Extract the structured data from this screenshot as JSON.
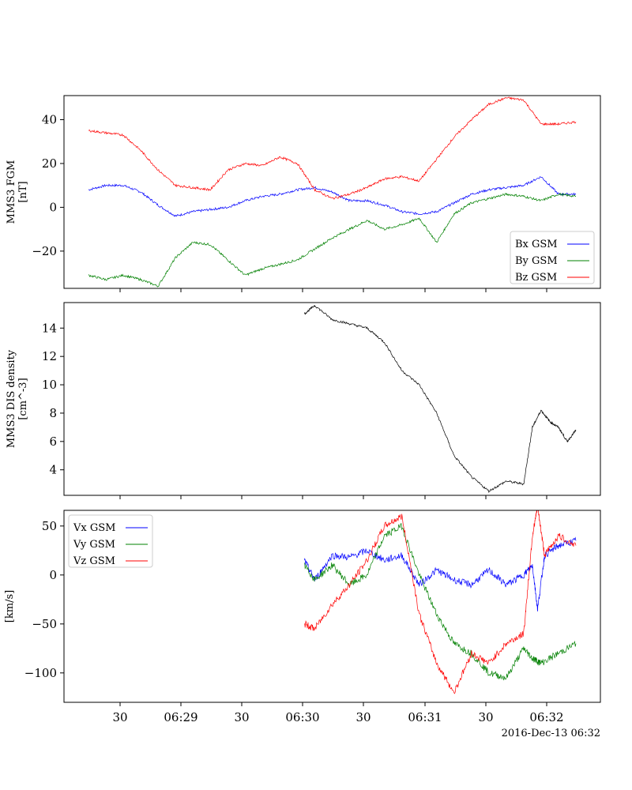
{
  "chart_data": [
    {
      "type": "line",
      "ylabel_lines": [
        "MMS3 FGM",
        "[nT]"
      ],
      "ylim": [
        -37,
        51
      ],
      "yticks": [
        40,
        20,
        0,
        -20
      ],
      "ytick_labels": [
        "40",
        "20",
        "0",
        "−20"
      ],
      "legend": "bottom-right",
      "series": [
        {
          "name": "Bx GSM",
          "color": "#0000ff",
          "x": [
            0,
            10,
            20,
            30,
            40,
            50,
            60,
            70,
            80,
            90,
            100,
            110,
            120,
            130,
            140,
            150,
            160,
            170,
            180,
            190,
            200,
            210,
            220,
            230,
            240,
            250,
            260,
            270,
            280
          ],
          "y": [
            8,
            10,
            10,
            7,
            1,
            -4,
            -2,
            -1,
            0,
            3,
            5,
            6,
            8,
            9,
            7,
            3,
            3,
            1,
            -2,
            -3,
            -2,
            2,
            6,
            8,
            9,
            10,
            14,
            6,
            6
          ]
        },
        {
          "name": "By GSM",
          "color": "#008000",
          "x": [
            0,
            10,
            20,
            30,
            40,
            50,
            60,
            70,
            80,
            90,
            100,
            110,
            120,
            130,
            140,
            150,
            160,
            170,
            180,
            190,
            200,
            210,
            220,
            230,
            240,
            250,
            260,
            270,
            280
          ],
          "y": [
            -31,
            -33,
            -31,
            -33,
            -36,
            -23,
            -16,
            -17,
            -24,
            -31,
            -28,
            -26,
            -24,
            -19,
            -14,
            -10,
            -6,
            -10,
            -8,
            -5,
            -16,
            -3,
            2,
            4,
            6,
            5,
            3,
            6,
            5
          ]
        },
        {
          "name": "Bz GSM",
          "color": "#ff0000",
          "x": [
            0,
            10,
            20,
            30,
            40,
            50,
            60,
            70,
            80,
            90,
            100,
            110,
            120,
            130,
            140,
            150,
            160,
            170,
            180,
            190,
            200,
            210,
            220,
            230,
            240,
            250,
            260,
            270,
            280
          ],
          "y": [
            35,
            34,
            33,
            26,
            17,
            10,
            9,
            8,
            17,
            20,
            19,
            23,
            20,
            8,
            4,
            6,
            9,
            13,
            14,
            12,
            22,
            32,
            40,
            47,
            50,
            49,
            38,
            38,
            39
          ]
        }
      ]
    },
    {
      "type": "line",
      "ylabel_lines": [
        "MMS3 DIS density",
        "[cm^-3]"
      ],
      "ylim": [
        2.2,
        15.8
      ],
      "yticks": [
        14,
        12,
        10,
        8,
        6,
        4
      ],
      "ytick_labels": [
        "14",
        "12",
        "10",
        "8",
        "6",
        "4"
      ],
      "series": [
        {
          "color": "#000000",
          "x": [
            124,
            130,
            140,
            150,
            160,
            170,
            180,
            190,
            200,
            210,
            220,
            230,
            240,
            250,
            255,
            260,
            265,
            270,
            275,
            280
          ],
          "y": [
            15,
            15.6,
            14.6,
            14.3,
            14,
            13,
            11,
            10,
            8,
            5,
            3.5,
            2.5,
            3.2,
            3,
            7,
            8.2,
            7.4,
            7,
            6,
            6.8
          ]
        }
      ]
    },
    {
      "type": "line",
      "ylabel_lines": [
        "[km/s]"
      ],
      "ylim": [
        -130,
        66
      ],
      "yticks": [
        50,
        0,
        -50,
        -100
      ],
      "ytick_labels": [
        "50",
        "0",
        "−50",
        "−100"
      ],
      "legend": "top-left",
      "series": [
        {
          "name": "Vx GSM",
          "color": "#0000ff",
          "x": [
            124,
            130,
            140,
            150,
            160,
            170,
            180,
            190,
            200,
            210,
            220,
            230,
            240,
            250,
            255,
            258,
            262,
            270,
            280
          ],
          "y": [
            15,
            -5,
            20,
            18,
            25,
            15,
            20,
            -10,
            5,
            -5,
            -10,
            5,
            -10,
            0,
            10,
            -35,
            20,
            30,
            35
          ]
        },
        {
          "name": "Vy GSM",
          "color": "#008000",
          "x": [
            124,
            130,
            140,
            150,
            160,
            170,
            180,
            190,
            200,
            210,
            220,
            230,
            240,
            250,
            255,
            260,
            270,
            280
          ],
          "y": [
            10,
            -5,
            10,
            -10,
            0,
            40,
            50,
            0,
            -40,
            -70,
            -80,
            -100,
            -105,
            -75,
            -85,
            -90,
            -80,
            -70
          ]
        },
        {
          "name": "Vz GSM",
          "color": "#ff0000",
          "x": [
            124,
            130,
            140,
            150,
            160,
            170,
            180,
            190,
            200,
            210,
            220,
            230,
            240,
            250,
            255,
            258,
            262,
            270,
            280
          ],
          "y": [
            -50,
            -55,
            -30,
            -10,
            15,
            50,
            60,
            -40,
            -90,
            -120,
            -80,
            -90,
            -70,
            -60,
            40,
            70,
            20,
            40,
            30
          ]
        }
      ]
    }
  ],
  "xaxis": {
    "tick_labels": [
      "30",
      "06:29",
      "30",
      "06:30",
      "30",
      "06:31",
      "30",
      "06:32"
    ],
    "date_label": "2016-Dec-13 06:32"
  }
}
